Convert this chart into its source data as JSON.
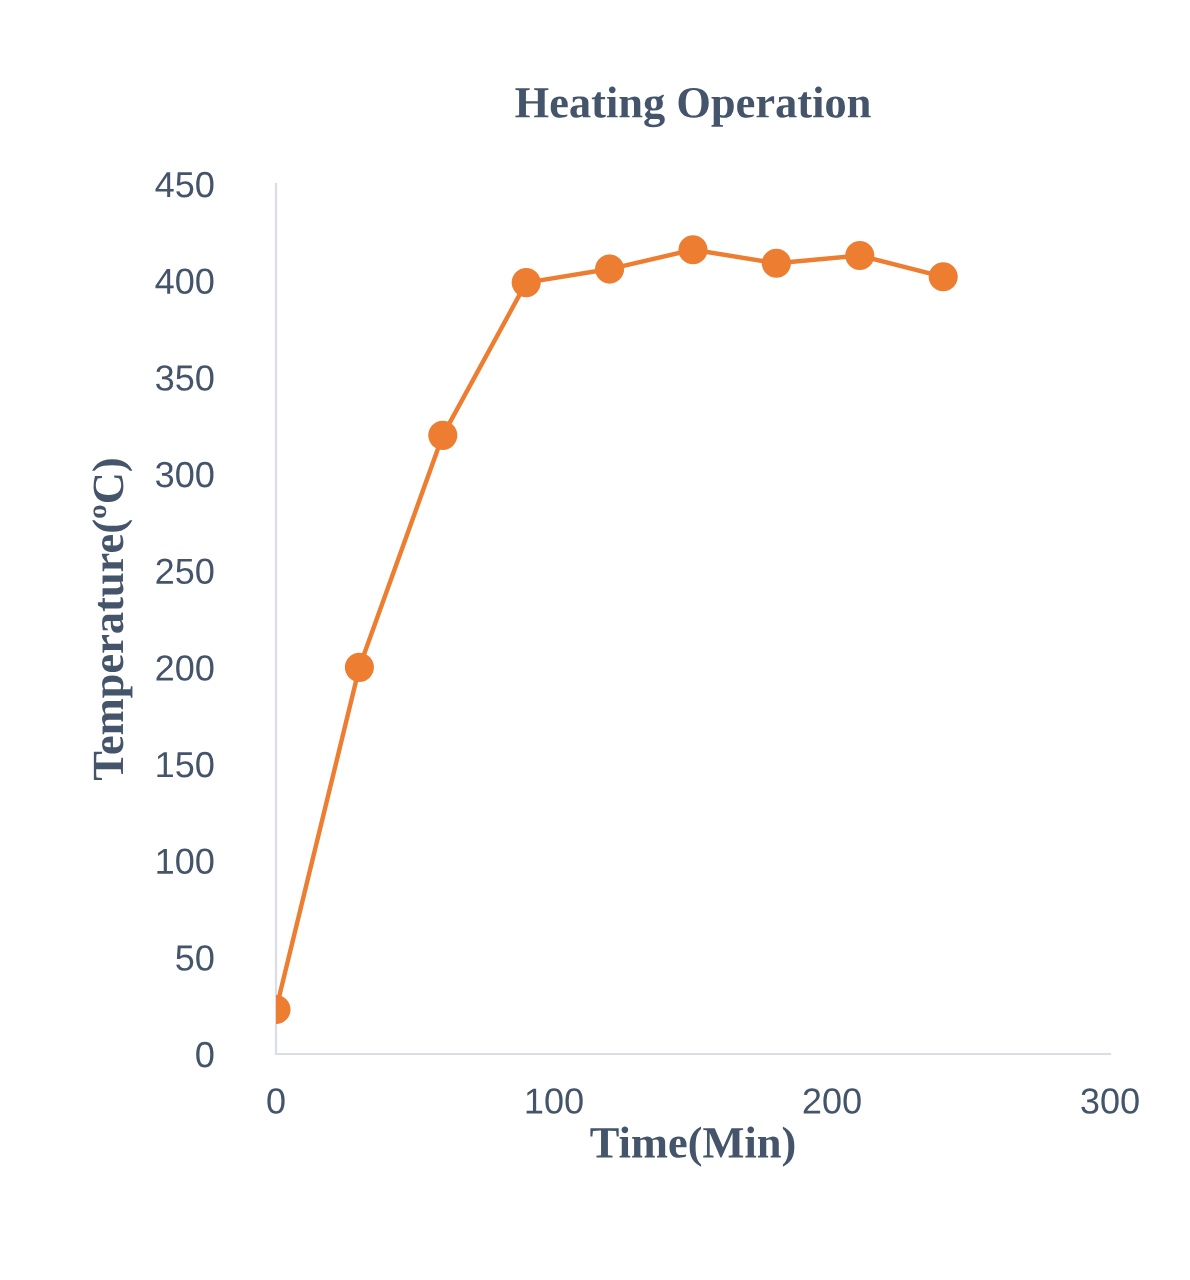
{
  "chart_data": {
    "type": "line",
    "title": "Heating Operation",
    "xlabel": "Time(Min)",
    "ylabel": "Temperature(ºC)",
    "x": [
      0,
      30,
      60,
      90,
      120,
      150,
      180,
      210,
      240
    ],
    "series": [
      {
        "color": "#ed7d31",
        "values": [
          23,
          200,
          320,
          399,
          406,
          416,
          409,
          413,
          402
        ]
      }
    ],
    "xlim": [
      0,
      300
    ],
    "xticks": [
      0,
      100,
      200,
      300
    ],
    "ylim": [
      0,
      450
    ],
    "yticks": [
      0,
      50,
      100,
      150,
      200,
      250,
      300,
      350,
      400,
      450
    ],
    "marker": "circle",
    "line_style": "solid",
    "grid": false,
    "legend": false
  }
}
